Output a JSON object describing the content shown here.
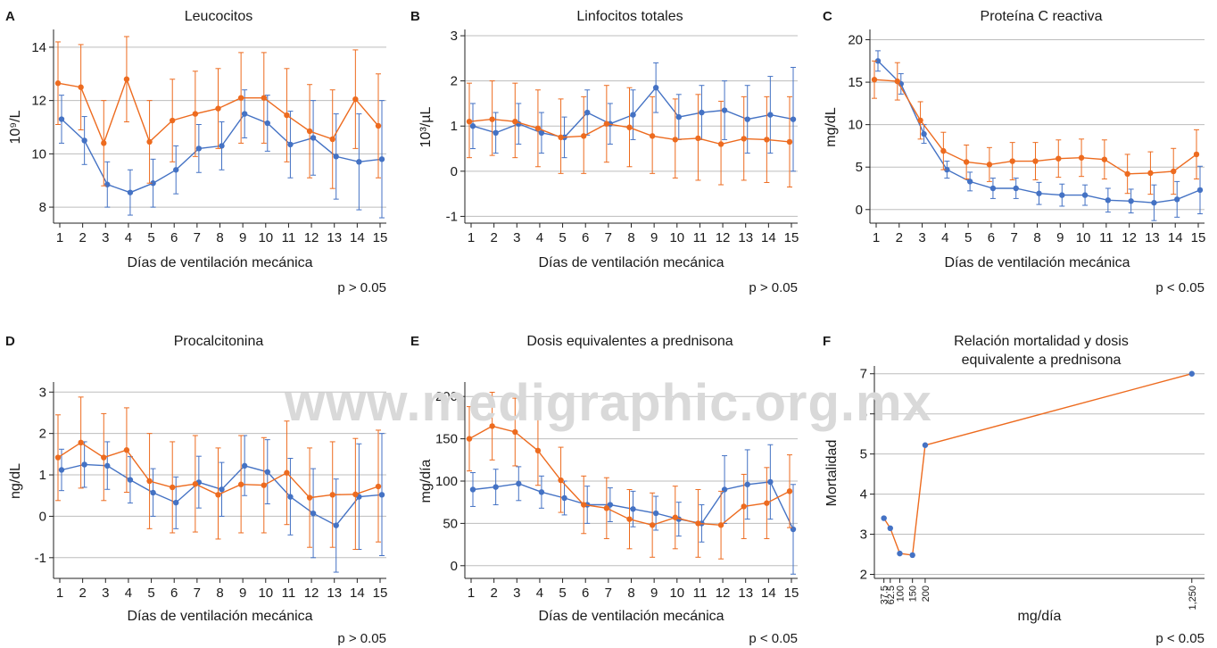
{
  "watermark": "www.medigraphic.org.mx",
  "colors": {
    "blue": "#4472c4",
    "orange": "#ed6b1f",
    "grid": "#bdbdbd",
    "axis": "#222222"
  },
  "chart_data": [
    {
      "panel": "A",
      "type": "line",
      "title": "Leucocitos",
      "ylabel": "10⁹/L",
      "xlabel": "Días de ventilación mecánica",
      "pvalue": "p > 0.05",
      "x": [
        1,
        2,
        3,
        4,
        5,
        6,
        7,
        8,
        9,
        10,
        11,
        12,
        13,
        14,
        15
      ],
      "ylim": [
        7.4,
        14.6
      ],
      "yticks": [
        8,
        10,
        12,
        14
      ],
      "ytick_labels": [
        "8",
        "10",
        "12",
        "14"
      ],
      "series": [
        {
          "color": "blue",
          "values": [
            11.3,
            10.5,
            8.85,
            8.55,
            8.9,
            9.4,
            10.2,
            10.3,
            11.5,
            11.15,
            10.35,
            10.6,
            9.9,
            9.7,
            9.8
          ],
          "lower": [
            10.4,
            9.6,
            8.0,
            7.7,
            8.0,
            8.5,
            9.3,
            9.4,
            10.6,
            10.1,
            9.1,
            9.2,
            8.3,
            7.9,
            7.6
          ],
          "upper": [
            12.2,
            11.4,
            9.7,
            9.4,
            9.8,
            10.3,
            11.1,
            11.2,
            12.4,
            12.2,
            11.6,
            12.0,
            11.5,
            11.5,
            12.0
          ]
        },
        {
          "color": "orange",
          "values": [
            12.65,
            12.5,
            10.4,
            12.8,
            10.45,
            11.25,
            11.5,
            11.7,
            12.1,
            12.1,
            11.45,
            10.85,
            10.55,
            12.05,
            11.05
          ],
          "lower": [
            11.1,
            10.9,
            8.8,
            11.2,
            8.9,
            9.7,
            9.9,
            10.2,
            10.4,
            10.4,
            9.7,
            9.1,
            8.7,
            10.2,
            9.1
          ],
          "upper": [
            14.2,
            14.1,
            12.0,
            14.4,
            12.0,
            12.8,
            13.1,
            13.2,
            13.8,
            13.8,
            13.2,
            12.6,
            12.4,
            13.9,
            13.0
          ]
        }
      ]
    },
    {
      "panel": "B",
      "type": "line",
      "title": "Linfocitos totales",
      "ylabel": "10³/µL",
      "xlabel": "Días de ventilación mecánica",
      "pvalue": "p > 0.05",
      "x": [
        1,
        2,
        3,
        4,
        5,
        6,
        7,
        8,
        9,
        10,
        11,
        12,
        13,
        14,
        15
      ],
      "ylim": [
        -1.15,
        3.1
      ],
      "yticks": [
        -1,
        0,
        1,
        2,
        3
      ],
      "ytick_labels": [
        "-1",
        "0",
        "1",
        "2",
        "3"
      ],
      "series": [
        {
          "color": "blue",
          "values": [
            1.0,
            0.85,
            1.05,
            0.85,
            0.75,
            1.3,
            1.05,
            1.25,
            1.85,
            1.2,
            1.3,
            1.35,
            1.15,
            1.25,
            1.15
          ],
          "lower": [
            0.5,
            0.4,
            0.6,
            0.4,
            0.3,
            0.8,
            0.6,
            0.7,
            1.3,
            0.7,
            0.7,
            0.7,
            0.4,
            0.4,
            0.0
          ],
          "upper": [
            1.5,
            1.3,
            1.5,
            1.3,
            1.2,
            1.8,
            1.5,
            1.8,
            2.4,
            1.7,
            1.9,
            2.0,
            1.9,
            2.1,
            2.3
          ]
        },
        {
          "color": "orange",
          "values": [
            1.1,
            1.15,
            1.1,
            0.95,
            0.75,
            0.78,
            1.05,
            0.97,
            0.78,
            0.7,
            0.73,
            0.6,
            0.72,
            0.7,
            0.65
          ],
          "lower": [
            0.3,
            0.35,
            0.3,
            0.1,
            -0.05,
            -0.05,
            0.2,
            0.1,
            -0.05,
            -0.15,
            -0.2,
            -0.3,
            -0.2,
            -0.25,
            -0.35
          ],
          "upper": [
            1.95,
            2.0,
            1.95,
            1.8,
            1.6,
            1.65,
            1.9,
            1.85,
            1.65,
            1.6,
            1.7,
            1.55,
            1.65,
            1.65,
            1.65
          ]
        }
      ]
    },
    {
      "panel": "C",
      "type": "line",
      "title": "Proteína C reactiva",
      "ylabel": "mg/dL",
      "xlabel": "Días de ventilación mecánica",
      "pvalue": "p < 0.05",
      "x": [
        1,
        2,
        3,
        4,
        5,
        6,
        7,
        8,
        9,
        10,
        11,
        12,
        13,
        14,
        15
      ],
      "ylim": [
        -1.6,
        21
      ],
      "yticks": [
        0,
        5,
        10,
        15,
        20
      ],
      "ytick_labels": [
        "0",
        "5",
        "10",
        "15",
        "20"
      ],
      "series": [
        {
          "color": "blue",
          "values": [
            17.5,
            14.8,
            8.9,
            4.7,
            3.3,
            2.5,
            2.5,
            1.9,
            1.7,
            1.7,
            1.1,
            1.0,
            0.8,
            1.2,
            2.3
          ],
          "lower": [
            16.3,
            13.6,
            7.8,
            3.7,
            2.2,
            1.3,
            1.3,
            0.6,
            0.4,
            0.5,
            -0.3,
            -0.4,
            -1.3,
            -0.9,
            -0.5
          ],
          "upper": [
            18.7,
            16.0,
            10.0,
            5.7,
            4.4,
            3.7,
            3.7,
            3.2,
            3.0,
            2.9,
            2.5,
            2.4,
            2.9,
            3.3,
            5.1
          ]
        },
        {
          "color": "orange",
          "values": [
            15.3,
            15.1,
            10.5,
            6.9,
            5.6,
            5.3,
            5.7,
            5.7,
            6.0,
            6.1,
            5.9,
            4.2,
            4.3,
            4.5,
            6.5
          ],
          "lower": [
            13.1,
            12.9,
            8.3,
            4.7,
            3.6,
            3.3,
            3.5,
            3.5,
            3.8,
            3.9,
            3.6,
            1.9,
            1.8,
            1.8,
            3.6
          ],
          "upper": [
            17.5,
            17.3,
            12.7,
            9.1,
            7.6,
            7.3,
            7.9,
            7.9,
            8.2,
            8.3,
            8.2,
            6.5,
            6.8,
            7.2,
            9.4
          ]
        }
      ]
    },
    {
      "panel": "D",
      "type": "line",
      "title": "Procalcitonina",
      "ylabel": "ng/dL",
      "xlabel": "Días de ventilación mecánica",
      "pvalue": "p > 0.05",
      "x": [
        1,
        2,
        3,
        4,
        5,
        6,
        7,
        8,
        9,
        10,
        11,
        12,
        13,
        14,
        15
      ],
      "ylim": [
        -1.5,
        3.2
      ],
      "yticks": [
        -1,
        0,
        1,
        2,
        3
      ],
      "ytick_labels": [
        "-1",
        "0",
        "1",
        "2",
        "3"
      ],
      "series": [
        {
          "color": "blue",
          "values": [
            1.12,
            1.25,
            1.22,
            0.88,
            0.57,
            0.33,
            0.82,
            0.65,
            1.22,
            1.07,
            0.47,
            0.07,
            -0.22,
            0.47,
            0.52
          ],
          "lower": [
            0.62,
            0.7,
            0.65,
            0.32,
            0.0,
            -0.3,
            0.2,
            0.0,
            0.5,
            0.3,
            -0.45,
            -1.0,
            -1.35,
            -0.8,
            -0.95
          ],
          "upper": [
            1.62,
            1.8,
            1.8,
            1.44,
            1.15,
            0.95,
            1.45,
            1.3,
            1.95,
            1.85,
            1.4,
            1.15,
            0.9,
            1.75,
            2.0
          ]
        },
        {
          "color": "orange",
          "values": [
            1.42,
            1.78,
            1.42,
            1.6,
            0.85,
            0.7,
            0.78,
            0.52,
            0.77,
            0.75,
            1.05,
            0.45,
            0.52,
            0.53,
            0.72
          ],
          "lower": [
            0.38,
            0.68,
            0.38,
            0.58,
            -0.3,
            -0.4,
            -0.38,
            -0.55,
            -0.4,
            -0.4,
            -0.2,
            -0.75,
            -0.75,
            -0.8,
            -0.62
          ],
          "upper": [
            2.45,
            2.88,
            2.48,
            2.62,
            2.0,
            1.8,
            1.95,
            1.65,
            1.95,
            1.9,
            2.3,
            1.65,
            1.8,
            1.88,
            2.08
          ]
        }
      ]
    },
    {
      "panel": "E",
      "type": "line",
      "title": "Dosis equivalentes a prednisona",
      "ylabel": "mg/día",
      "xlabel": "Días de ventilación mecánica",
      "pvalue": "p < 0.05",
      "x": [
        1,
        2,
        3,
        4,
        5,
        6,
        7,
        8,
        9,
        10,
        11,
        12,
        13,
        14,
        15
      ],
      "ylim": [
        -15,
        215
      ],
      "yticks": [
        0,
        50,
        100,
        150,
        200
      ],
      "ytick_labels": [
        "0",
        "50",
        "100",
        "150",
        "200"
      ],
      "series": [
        {
          "color": "blue",
          "values": [
            90,
            93,
            97,
            87,
            80,
            72,
            72,
            67,
            62,
            55,
            50,
            90,
            96,
            99,
            43
          ],
          "lower": [
            70,
            72,
            77,
            68,
            60,
            50,
            52,
            46,
            42,
            35,
            28,
            50,
            55,
            55,
            -10
          ],
          "upper": [
            110,
            114,
            117,
            106,
            100,
            94,
            92,
            88,
            82,
            75,
            72,
            130,
            137,
            143,
            96
          ]
        },
        {
          "color": "orange",
          "values": [
            150,
            165,
            158,
            136,
            101,
            72,
            68,
            55,
            48,
            57,
            50,
            48,
            70,
            74,
            88
          ],
          "lower": [
            112,
            125,
            118,
            95,
            63,
            38,
            32,
            20,
            10,
            20,
            10,
            8,
            32,
            32,
            45
          ],
          "upper": [
            188,
            205,
            198,
            177,
            140,
            106,
            104,
            90,
            86,
            94,
            90,
            88,
            108,
            116,
            131
          ]
        }
      ]
    },
    {
      "panel": "F",
      "type": "line",
      "title_lines": [
        "Relación mortalidad y dosis",
        "equivalente a prednisona"
      ],
      "ylabel": "Mortalidad",
      "xlabel": "mg/día",
      "pvalue": "p < 0.05",
      "xticks": [
        37.5,
        62.5,
        100,
        150,
        200,
        1250
      ],
      "xtick_labels": [
        "37.5",
        "62.5",
        "100",
        "150",
        "200",
        "1,250"
      ],
      "xlim": [
        0,
        1300
      ],
      "ylim": [
        1.9,
        7.15
      ],
      "yticks": [
        2,
        3,
        4,
        5,
        6,
        7
      ],
      "ytick_labels": [
        "2",
        "3",
        "4",
        "5",
        "6",
        "7"
      ],
      "series": [
        {
          "color": "orange",
          "x": [
            37.5,
            62.5,
            100,
            150,
            200,
            1250
          ],
          "values": [
            3.4,
            3.15,
            2.52,
            2.48,
            5.22,
            7.0
          ]
        }
      ]
    }
  ]
}
